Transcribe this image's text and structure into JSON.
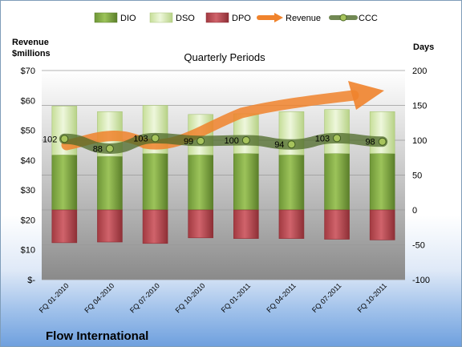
{
  "chart_data": {
    "type": "bar",
    "title": "Quarterly Periods",
    "categories": [
      "FQ 01-2010",
      "FQ 04-2010",
      "FQ 07-2010",
      "FQ 10-2010",
      "FQ 01-2011",
      "FQ 04-2011",
      "FQ 07-2011",
      "FQ 10-2011"
    ],
    "series": [
      {
        "name": "DIO",
        "axis": "days",
        "values": [
          79,
          77,
          81,
          79,
          81,
          79,
          81,
          81
        ],
        "color": "#7ba23f"
      },
      {
        "name": "DSO",
        "axis": "days",
        "values": [
          70,
          64,
          69,
          58,
          57,
          62,
          63,
          60
        ],
        "color": "#d6e9b0"
      },
      {
        "name": "DPO",
        "axis": "days",
        "values": [
          -47,
          -46,
          -48,
          -40,
          -41,
          -41,
          -42,
          -43
        ],
        "color": "#b5444c"
      },
      {
        "name": "Revenue",
        "axis": "revenue",
        "values": [
          null,
          null,
          null,
          null,
          null,
          null,
          null,
          null
        ],
        "color": "#f28a30"
      },
      {
        "name": "CCC",
        "axis": "days",
        "values": [
          102,
          88,
          103,
          99,
          100,
          94,
          103,
          98
        ],
        "color": "#4e6a28"
      }
    ],
    "data_labels": [
      "102",
      "88",
      "103",
      "99",
      "100",
      "94",
      "103",
      "98"
    ],
    "y_left": {
      "label_line1": "Revenue",
      "label_line2": "$millions",
      "ylim": [
        0,
        70
      ],
      "ticks": [
        "$-",
        "$10",
        "$20",
        "$30",
        "$40",
        "$50",
        "$60",
        "$70"
      ]
    },
    "y_right": {
      "label": "Days",
      "ylim": [
        -100,
        200
      ],
      "ticks": [
        "-100",
        "-50",
        "0",
        "50",
        "100",
        "150",
        "200"
      ]
    },
    "legend": [
      "DIO",
      "DSO",
      "DPO",
      "Revenue",
      "CCC"
    ],
    "legend_position": "top",
    "grid": true
  },
  "company": "Flow International"
}
